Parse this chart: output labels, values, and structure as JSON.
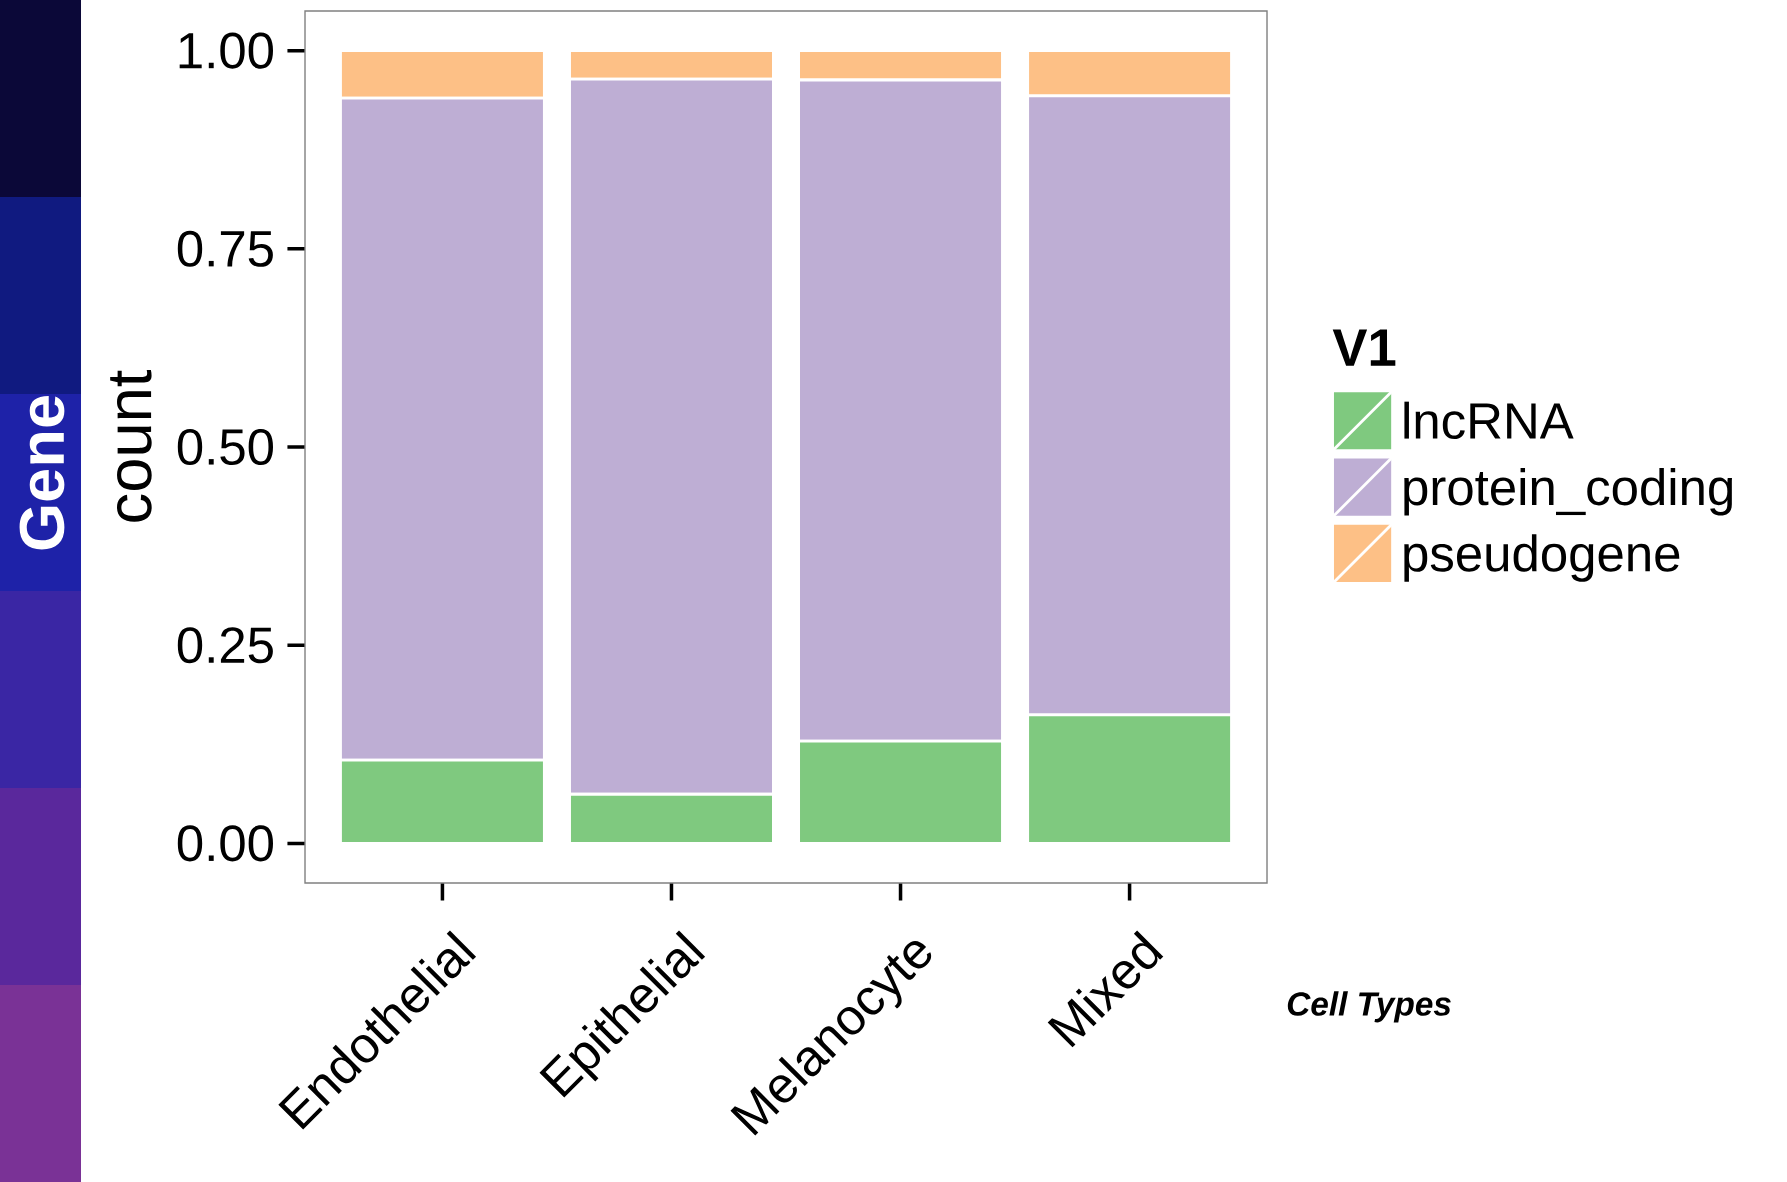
{
  "chart_data": {
    "type": "bar",
    "stacked": true,
    "xlabel": "Cell Types",
    "ylabel": "count",
    "legend_title": "V1",
    "legend": "right",
    "categories": [
      "Endothelial",
      "Epithelial",
      "Melanocyte",
      "Mixed"
    ],
    "series": [
      {
        "name": "lncRNA",
        "color": "#7fc97f",
        "values": [
          0.105,
          0.062,
          0.129,
          0.162
        ]
      },
      {
        "name": "protein_coding",
        "color": "#beaed4",
        "values": [
          0.835,
          0.902,
          0.834,
          0.781
        ]
      },
      {
        "name": "pseudogene",
        "color": "#fdc086",
        "values": [
          0.06,
          0.036,
          0.037,
          0.057
        ]
      }
    ],
    "ylim": [
      -0.05,
      1.05
    ],
    "yticks": [
      {
        "value": 0,
        "label": "0.00"
      },
      {
        "value": 0.25,
        "label": "0.25"
      },
      {
        "value": 0.5,
        "label": "0.50"
      },
      {
        "value": 0.75,
        "label": "0.75"
      },
      {
        "value": 1,
        "label": "1.00"
      }
    ],
    "annotations": [
      "Gene"
    ]
  }
}
